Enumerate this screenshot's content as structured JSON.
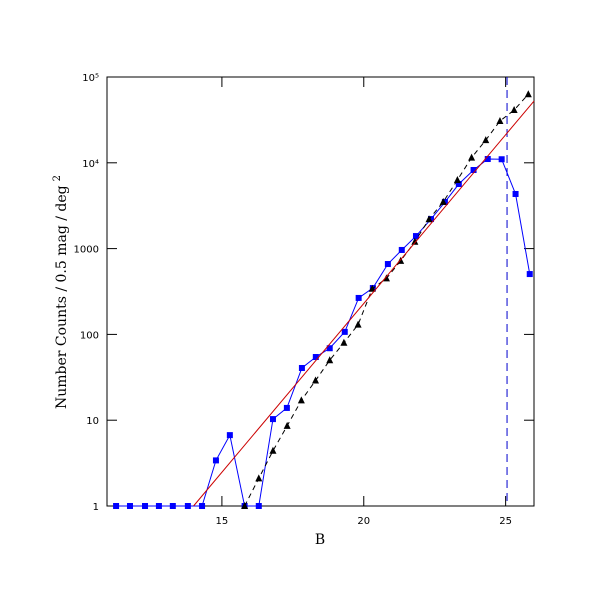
{
  "chart_data": {
    "type": "line",
    "yscale": "log",
    "grid": false,
    "xlabel": "B",
    "ylabel": "Number Counts / 0.5 mag / deg",
    "ylabel_sup": "2",
    "xlim": [
      10.95,
      26
    ],
    "ylim": [
      1,
      100000
    ],
    "xticks": [
      15,
      20,
      25
    ],
    "yticks": [
      1,
      10,
      100,
      1000,
      {
        "value": 10000,
        "label": "10⁴"
      },
      {
        "value": 100000,
        "label": "10⁵"
      }
    ],
    "vline": {
      "x": 25.05,
      "color": "#0000cc"
    },
    "series": [
      {
        "color": "#0000ff",
        "marker": "square",
        "dash": "none",
        "x": [
          11.27,
          11.76,
          12.29,
          12.78,
          13.27,
          13.8,
          14.3,
          14.79,
          15.28,
          15.8,
          16.3,
          16.8,
          17.29,
          17.82,
          18.31,
          18.8,
          19.33,
          19.82,
          20.32,
          20.85,
          21.34,
          21.84,
          22.37,
          22.86,
          23.35,
          23.87,
          24.37,
          24.86,
          25.35,
          25.85
        ],
        "values": [
          1,
          1,
          1,
          1,
          1,
          1,
          1,
          3.4,
          6.7,
          1,
          1,
          10.3,
          13.9,
          40.6,
          54.5,
          69,
          107,
          266,
          347,
          661,
          964,
          1400,
          2210,
          3490,
          5660,
          8240,
          11070,
          11000,
          4330,
          505
        ]
      },
      {
        "color": "#000000",
        "marker": "triangle",
        "dash": "5,4",
        "x": [
          15.8,
          16.3,
          16.8,
          17.3,
          17.8,
          18.3,
          18.8,
          19.3,
          19.8,
          20.3,
          20.8,
          21.3,
          21.8,
          22.3,
          22.8,
          23.3,
          23.8,
          24.3,
          24.8,
          25.3,
          25.8
        ],
        "values": [
          1,
          2.1,
          4.4,
          8.6,
          17,
          29,
          50,
          80,
          130,
          340,
          450,
          720,
          1200,
          2200,
          3500,
          6300,
          11500,
          18400,
          30700,
          41200,
          63000
        ]
      },
      {
        "color": "#cc0000",
        "marker": "none",
        "dash": "none",
        "x": [
          14.0,
          26.0
        ],
        "values": [
          1,
          52500
        ]
      }
    ]
  }
}
